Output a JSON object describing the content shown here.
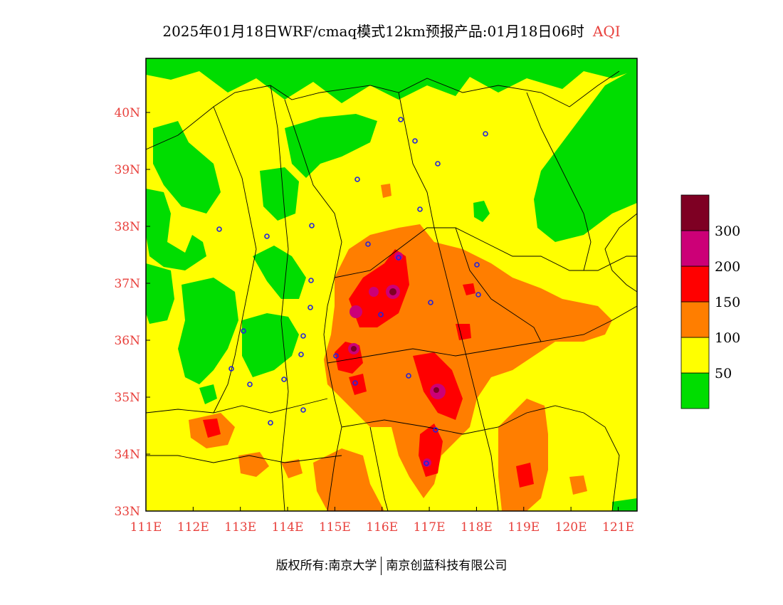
{
  "title": {
    "text": "2025年01月18日WRF/cmaq模式12km预报产品:01月18日06时",
    "pollutant": "AQI"
  },
  "map": {
    "lon_ticks": [
      "111E",
      "112E",
      "113E",
      "114E",
      "115E",
      "116E",
      "117E",
      "118E",
      "119E",
      "120E",
      "121E"
    ],
    "lat_ticks": [
      "33N",
      "34N",
      "35N",
      "36N",
      "37N",
      "38N",
      "39N",
      "40N"
    ],
    "lon_range": [
      111,
      121.4
    ],
    "lat_range": [
      33,
      40.95
    ]
  },
  "legend": {
    "bins": [
      {
        "color": "#00dd00"
      },
      {
        "color": "#ffff00"
      },
      {
        "color": "#ff7e00"
      },
      {
        "color": "#ff0000"
      },
      {
        "color": "#cc0077"
      },
      {
        "color": "#7e0023"
      }
    ],
    "labels": [
      "50",
      "100",
      "150",
      "200",
      "300"
    ]
  },
  "footer": {
    "copyright": "版权所有:南京大学",
    "company": "南京创蓝科技有限公司"
  }
}
